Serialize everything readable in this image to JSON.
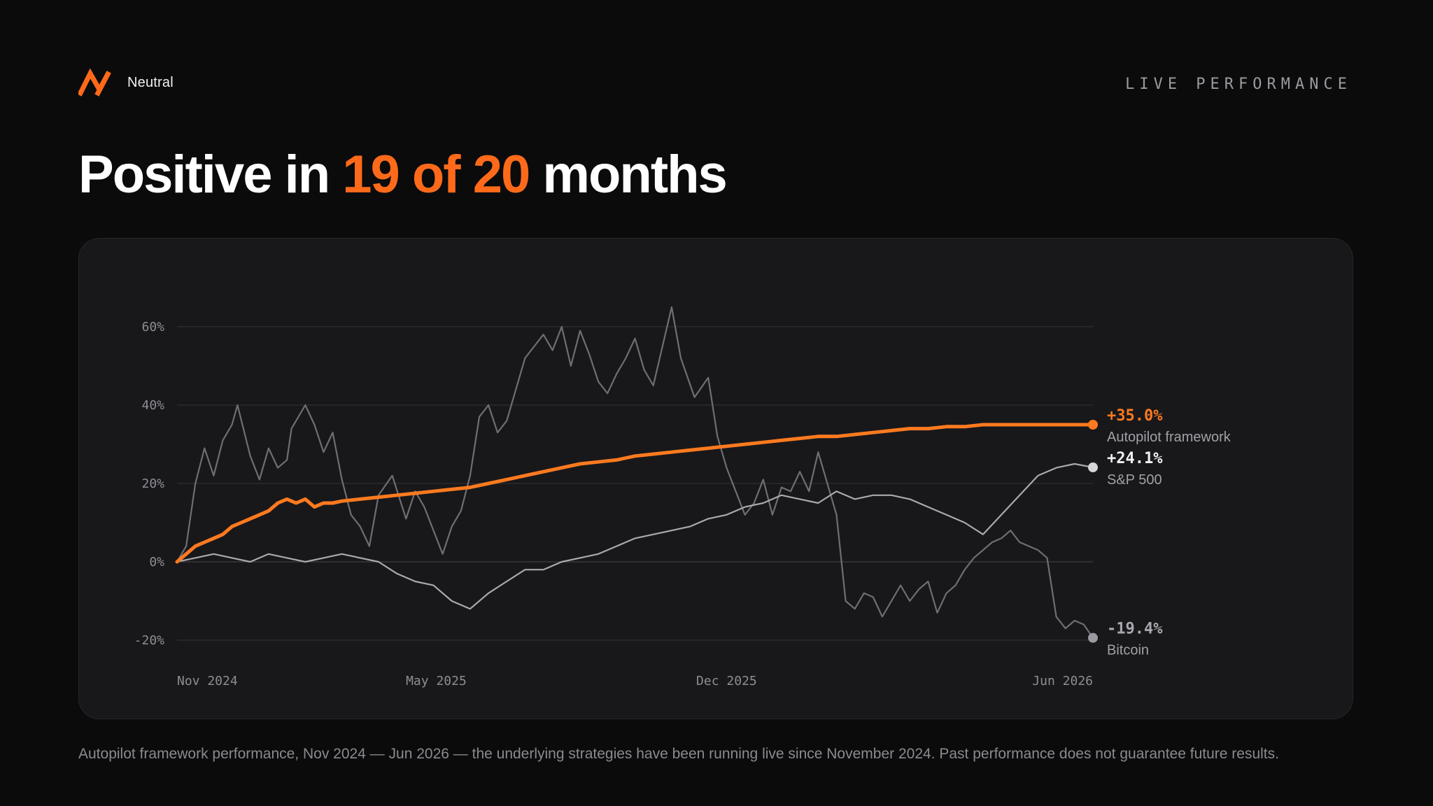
{
  "brand": {
    "name": "Neutral",
    "icon": "neutral-logo-icon",
    "accent_color": "#ff6a1a"
  },
  "section_label": "LIVE PERFORMANCE",
  "headline": {
    "before": "Positive in ",
    "accent": "19 of 20",
    "after": " months"
  },
  "footnote": "Autopilot framework performance, Nov 2024 — Jun 2026 — the underlying strategies have been running live since November 2024. Past performance does not guarantee future results.",
  "chart_data": {
    "type": "line",
    "title": "",
    "xlabel": "",
    "ylabel": "",
    "x_start": "2024-11",
    "x_end": "2026-06",
    "x_tick_labels": [
      "Nov 2024",
      "May 2025",
      "Dec 2025",
      "Jun 2026"
    ],
    "x_tick_positions": [
      0,
      0.283,
      0.6,
      1.0
    ],
    "y_tick_labels": [
      "60%",
      "40%",
      "20%",
      "0%",
      "-20%"
    ],
    "y_tick_values": [
      60,
      40,
      20,
      0,
      -20
    ],
    "ylim": [
      -20,
      60
    ],
    "grid": true,
    "legend": "end-labels-right",
    "series": [
      {
        "name": "Bitcoin",
        "color": "#6e6e73",
        "end_value_label": "-19.4%",
        "x": [
          0.0,
          0.01,
          0.02,
          0.03,
          0.04,
          0.05,
          0.06,
          0.066,
          0.08,
          0.09,
          0.1,
          0.11,
          0.12,
          0.125,
          0.14,
          0.15,
          0.16,
          0.17,
          0.18,
          0.19,
          0.2,
          0.21,
          0.22,
          0.235,
          0.25,
          0.26,
          0.27,
          0.29,
          0.3,
          0.31,
          0.32,
          0.33,
          0.34,
          0.35,
          0.36,
          0.37,
          0.38,
          0.39,
          0.4,
          0.41,
          0.42,
          0.43,
          0.44,
          0.45,
          0.46,
          0.47,
          0.48,
          0.49,
          0.5,
          0.51,
          0.52,
          0.53,
          0.54,
          0.55,
          0.565,
          0.58,
          0.59,
          0.6,
          0.61,
          0.62,
          0.63,
          0.64,
          0.65,
          0.66,
          0.67,
          0.68,
          0.69,
          0.7,
          0.71,
          0.72,
          0.73,
          0.74,
          0.75,
          0.76,
          0.77,
          0.78,
          0.79,
          0.8,
          0.81,
          0.82,
          0.83,
          0.84,
          0.85,
          0.86,
          0.87,
          0.88,
          0.89,
          0.9,
          0.91,
          0.92,
          0.93,
          0.94,
          0.95,
          0.96,
          0.97,
          0.98,
          0.99,
          1.0
        ],
        "values": [
          0,
          4,
          20,
          29,
          22,
          31,
          35,
          40,
          27,
          21,
          29,
          24,
          26,
          34,
          40,
          35,
          28,
          33,
          21,
          12,
          9,
          4,
          17,
          22,
          11,
          18,
          14,
          2,
          9,
          13,
          22,
          37,
          40,
          33,
          36,
          44,
          52,
          55,
          58,
          54,
          60,
          50,
          59,
          53,
          46,
          43,
          48,
          52,
          57,
          49,
          45,
          55,
          65,
          52,
          42,
          47,
          32,
          24,
          18,
          12,
          15,
          21,
          12,
          19,
          18,
          23,
          18,
          28,
          20,
          12,
          -10,
          -12,
          -8,
          -9,
          -14,
          -10,
          -6,
          -10,
          -7,
          -5,
          -13,
          -8,
          -6,
          -2,
          1,
          3,
          5,
          6,
          8,
          5,
          4,
          3,
          1,
          -14,
          -17,
          -15,
          -16,
          -19.4
        ]
      },
      {
        "name": "S&P 500",
        "color": "#a9a9ae",
        "end_value_label": "+24.1%",
        "x": [
          0.0,
          0.02,
          0.04,
          0.06,
          0.08,
          0.1,
          0.12,
          0.14,
          0.16,
          0.18,
          0.2,
          0.22,
          0.24,
          0.26,
          0.28,
          0.3,
          0.32,
          0.34,
          0.36,
          0.38,
          0.4,
          0.42,
          0.44,
          0.46,
          0.48,
          0.5,
          0.52,
          0.54,
          0.56,
          0.58,
          0.6,
          0.62,
          0.64,
          0.66,
          0.68,
          0.7,
          0.72,
          0.74,
          0.76,
          0.78,
          0.8,
          0.82,
          0.84,
          0.86,
          0.88,
          0.9,
          0.92,
          0.94,
          0.96,
          0.98,
          1.0
        ],
        "values": [
          0,
          1,
          2,
          1,
          0,
          2,
          1,
          0,
          1,
          2,
          1,
          0,
          -3,
          -5,
          -6,
          -10,
          -12,
          -8,
          -5,
          -2,
          -2,
          0,
          1,
          2,
          4,
          6,
          7,
          8,
          9,
          11,
          12,
          14,
          15,
          17,
          16,
          15,
          18,
          16,
          17,
          17,
          16,
          14,
          12,
          10,
          7,
          12,
          17,
          22,
          24,
          25,
          24.1
        ]
      },
      {
        "name": "Autopilot framework",
        "color": "#ff7a1f",
        "end_value_label": "+35.0%",
        "x": [
          0.0,
          0.01,
          0.02,
          0.03,
          0.04,
          0.05,
          0.06,
          0.07,
          0.08,
          0.09,
          0.1,
          0.11,
          0.12,
          0.13,
          0.14,
          0.15,
          0.16,
          0.17,
          0.18,
          0.2,
          0.22,
          0.24,
          0.26,
          0.28,
          0.3,
          0.32,
          0.34,
          0.36,
          0.38,
          0.4,
          0.42,
          0.44,
          0.46,
          0.48,
          0.5,
          0.52,
          0.54,
          0.56,
          0.58,
          0.6,
          0.62,
          0.64,
          0.66,
          0.68,
          0.7,
          0.72,
          0.74,
          0.76,
          0.78,
          0.8,
          0.82,
          0.84,
          0.86,
          0.88,
          0.9,
          0.92,
          0.94,
          0.96,
          0.98,
          1.0
        ],
        "values": [
          0,
          2,
          4,
          5,
          6,
          7,
          9,
          10,
          11,
          12,
          13,
          15,
          16,
          15,
          16,
          14,
          15,
          15,
          15.5,
          16,
          16.5,
          17,
          17.5,
          18,
          18.5,
          19,
          20,
          21,
          22,
          23,
          24,
          25,
          25.5,
          26,
          27,
          27.5,
          28,
          28.5,
          29,
          29.5,
          30,
          30.5,
          31,
          31.5,
          32,
          32,
          32.5,
          33,
          33.5,
          34,
          34,
          34.5,
          34.5,
          35,
          35.0,
          35.0,
          35.0,
          35.0,
          35.0,
          35.0
        ]
      }
    ]
  }
}
